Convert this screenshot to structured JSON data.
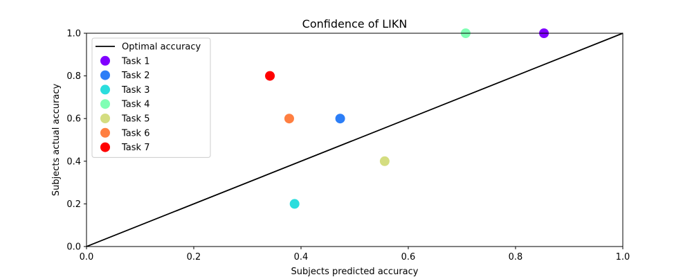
{
  "chart_data": {
    "type": "scatter",
    "title": "Confidence of LIKN",
    "xlabel": "Subjects predicted accuracy",
    "ylabel": "Subjects actual accuracy",
    "xlim": [
      0,
      1
    ],
    "ylim": [
      0,
      1
    ],
    "xticks": [
      "0.0",
      "0.2",
      "0.4",
      "0.6",
      "0.8",
      "1.0"
    ],
    "yticks": [
      "0.0",
      "0.2",
      "0.4",
      "0.6",
      "0.8",
      "1.0"
    ],
    "grid": false,
    "legend_position": "top-left",
    "reference_line": {
      "name": "Optimal accuracy",
      "x": [
        0,
        1
      ],
      "y": [
        0,
        1
      ],
      "color": "#000000"
    },
    "series": [
      {
        "name": "Task 1",
        "color": "#8000ff",
        "x": 0.853,
        "y": 1.0
      },
      {
        "name": "Task 2",
        "color": "#2c7ef7",
        "x": 0.473,
        "y": 0.6
      },
      {
        "name": "Task 3",
        "color": "#2adddd",
        "x": 0.388,
        "y": 0.2
      },
      {
        "name": "Task 4",
        "color": "#80ffb4",
        "x": 0.707,
        "y": 1.0
      },
      {
        "name": "Task 5",
        "color": "#d4dd80",
        "x": 0.556,
        "y": 0.4
      },
      {
        "name": "Task 6",
        "color": "#ff7f41",
        "x": 0.378,
        "y": 0.6
      },
      {
        "name": "Task 7",
        "color": "#ff0000",
        "x": 0.342,
        "y": 0.8
      }
    ]
  }
}
